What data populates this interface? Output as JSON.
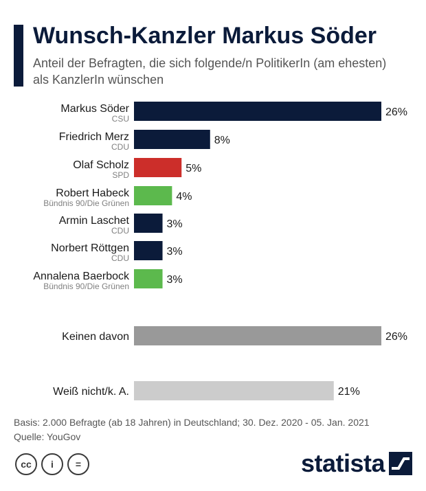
{
  "header": {
    "title": "Wunsch-Kanzler Markus Söder",
    "subtitle": "Anteil der Befragten, die sich folgende/n PolitikerIn (am ehesten) als KanzlerIn wünschen"
  },
  "chart_data": {
    "type": "bar",
    "orientation": "horizontal",
    "xlim": [
      0,
      26
    ],
    "rows": [
      {
        "label": "Markus Söder",
        "party": "CSU",
        "value": 26,
        "value_label": "26%",
        "color": "#0b1b3a"
      },
      {
        "label": "Friedrich Merz",
        "party": "CDU",
        "value": 8,
        "value_label": "8%",
        "color": "#0b1b3a"
      },
      {
        "label": "Olaf Scholz",
        "party": "SPD",
        "value": 5,
        "value_label": "5%",
        "color": "#cc2e2a"
      },
      {
        "label": "Robert Habeck",
        "party": "Bündnis 90/Die Grünen",
        "value": 4,
        "value_label": "4%",
        "color": "#5cb94d"
      },
      {
        "label": "Armin Laschet",
        "party": "CDU",
        "value": 3,
        "value_label": "3%",
        "color": "#0b1b3a"
      },
      {
        "label": "Norbert Röttgen",
        "party": "CDU",
        "value": 3,
        "value_label": "3%",
        "color": "#0b1b3a"
      },
      {
        "label": "Annalena Baerbock",
        "party": "Bündnis 90/Die Grünen",
        "value": 3,
        "value_label": "3%",
        "color": "#5cb94d"
      },
      {
        "label": "Keinen davon",
        "party": "",
        "value": 26,
        "value_label": "26%",
        "color": "#999999"
      },
      {
        "label": "Weiß nicht/k. A.",
        "party": "",
        "value": 21,
        "value_label": "21%",
        "color": "#cccccc"
      }
    ]
  },
  "footer": {
    "basis": "Basis: 2.000 Befragte (ab 18 Jahren) in Deutschland; 30. Dez. 2020 - 05. Jan. 2021",
    "source": "Quelle: YouGov"
  },
  "license_icons": [
    {
      "name": "cc-icon",
      "glyph": "cc"
    },
    {
      "name": "attribution-icon",
      "glyph": "i"
    },
    {
      "name": "no-derivatives-icon",
      "glyph": "="
    }
  ],
  "brand": {
    "logo_text": "statista"
  }
}
